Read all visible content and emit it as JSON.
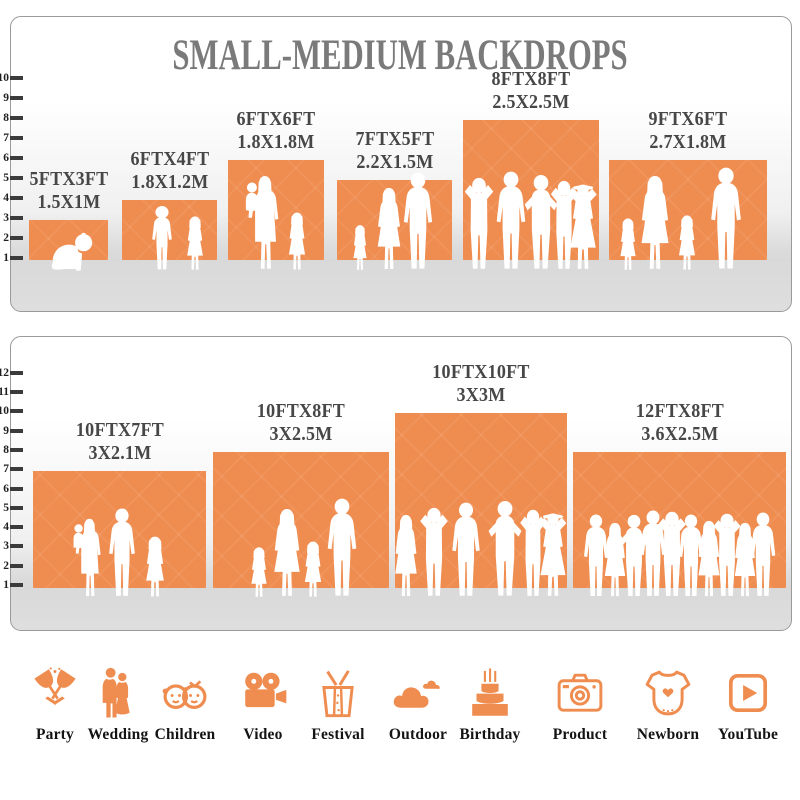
{
  "title": "SMALL-MEDIUM BACKDROPS",
  "panels": [
    {
      "name": "small-medium",
      "ruler_numbers": [
        "1",
        "2",
        "3",
        "4",
        "5",
        "6",
        "7",
        "8",
        "9",
        "10"
      ],
      "items": [
        {
          "size_ft": "5FTX3FT",
          "size_m": "1.5X1M",
          "height_ft": 3,
          "figures": "crawling-baby"
        },
        {
          "size_ft": "6FTX4FT",
          "size_m": "1.8X1.2M",
          "height_ft": 4,
          "figures": "two-children"
        },
        {
          "size_ft": "6FTX6FT",
          "size_m": "1.8X1.8M",
          "height_ft": 6,
          "figures": "mother-and-children"
        },
        {
          "size_ft": "7FTX5FT",
          "size_m": "2.2X1.5M",
          "height_ft": 5,
          "figures": "family-of-three"
        },
        {
          "size_ft": "8FTX8FT",
          "size_m": "2.5X2.5M",
          "height_ft": 8,
          "figures": "group-of-five"
        },
        {
          "size_ft": "9FTX6FT",
          "size_m": "2.7X1.8M",
          "height_ft": 6,
          "figures": "family-of-four"
        }
      ]
    },
    {
      "name": "large",
      "ruler_numbers": [
        "1",
        "2",
        "3",
        "4",
        "5",
        "6",
        "7",
        "8",
        "9",
        "10",
        "11",
        "12"
      ],
      "items": [
        {
          "size_ft": "10FTX7FT",
          "size_m": "3X2.1M",
          "height_ft": 7,
          "figures": "mother-family-of-three"
        },
        {
          "size_ft": "10FTX8FT",
          "size_m": "3X2.5M",
          "height_ft": 8,
          "figures": "family-of-four-holding-hands"
        },
        {
          "size_ft": "10FTX10FT",
          "size_m": "3X3M",
          "height_ft": 10,
          "figures": "group-of-six"
        },
        {
          "size_ft": "12FTX8FT",
          "size_m": "3.6X2.5M",
          "height_ft": 8,
          "figures": "crowd-of-ten"
        }
      ]
    }
  ],
  "categories": [
    {
      "label": "Party",
      "icon": "party-icon"
    },
    {
      "label": "Wedding",
      "icon": "wedding-icon"
    },
    {
      "label": "Children",
      "icon": "children-icon"
    },
    {
      "label": "Video",
      "icon": "video-icon"
    },
    {
      "label": "Festival",
      "icon": "festival-icon"
    },
    {
      "label": "Outdoor",
      "icon": "outdoor-icon"
    },
    {
      "label": "Birthday",
      "icon": "birthday-icon"
    },
    {
      "label": "Product",
      "icon": "product-icon"
    },
    {
      "label": "Newborn",
      "icon": "newborn-icon"
    },
    {
      "label": "YouTube",
      "icon": "youtube-icon"
    }
  ],
  "colors": {
    "accent": "#EF8C4F",
    "title": "#7A7A7A",
    "label": "#474747",
    "ruler": "#1E1E1E",
    "tick": "#3B3B3B",
    "border": "#9A9A9A",
    "figure": "#FFFFFF",
    "category_label": "#141414"
  }
}
